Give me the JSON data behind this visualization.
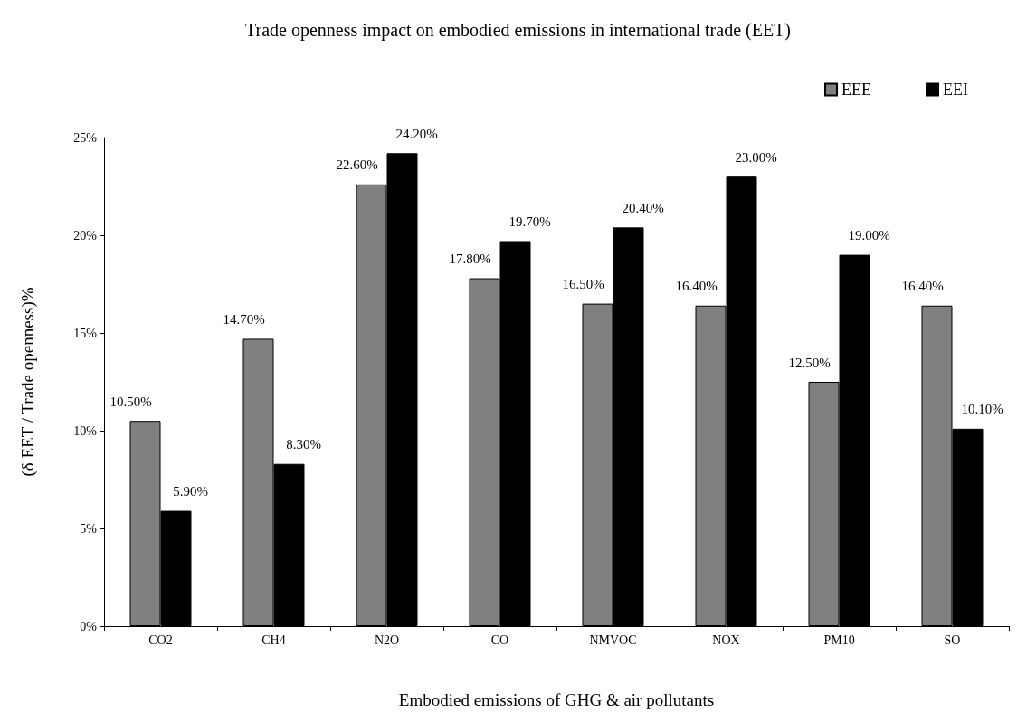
{
  "chart_data": {
    "type": "bar",
    "title": "Trade openness impact on embodied emissions in international trade (EET)",
    "xlabel": "Embodied emissions of GHG & air pollutants",
    "ylabel": "(δ EET / Trade openness)%",
    "categories": [
      "CO2",
      "CH4",
      "N2O",
      "CO",
      "NMVOC",
      "NOX",
      "PM10",
      "SO"
    ],
    "series": [
      {
        "name": "EEE",
        "color": "#808080",
        "values": [
          10.5,
          14.7,
          22.6,
          17.8,
          16.5,
          16.4,
          12.5,
          16.4
        ],
        "value_labels": [
          "10.50%",
          "14.70%",
          "22.60%",
          "17.80%",
          "16.50%",
          "16.40%",
          "12.50%",
          "16.40%"
        ]
      },
      {
        "name": "EEI",
        "color": "#000000",
        "values": [
          5.9,
          8.3,
          24.2,
          19.7,
          20.4,
          23.0,
          19.0,
          10.1
        ],
        "value_labels": [
          "5.90%",
          "8.30%",
          "24.20%",
          "19.70%",
          "20.40%",
          "23.00%",
          "19.00%",
          "10.10%"
        ]
      }
    ],
    "ylim": [
      0,
      25
    ],
    "yticks": [
      {
        "value": 0,
        "label": "0%"
      },
      {
        "value": 5,
        "label": "5%"
      },
      {
        "value": 10,
        "label": "10%"
      },
      {
        "value": 15,
        "label": "15%"
      },
      {
        "value": 20,
        "label": "20%"
      },
      {
        "value": 25,
        "label": "25%"
      }
    ],
    "grid": false,
    "legend": "top right"
  }
}
